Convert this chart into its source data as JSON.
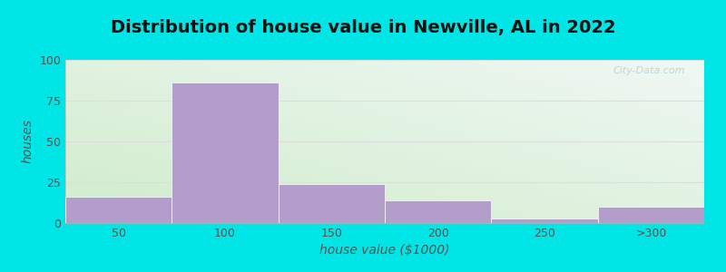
{
  "title": "Distribution of house value in Newville, AL in 2022",
  "xlabel": "house value ($1000)",
  "ylabel": "houses",
  "bar_values": [
    16,
    86,
    24,
    14,
    3,
    10
  ],
  "bar_labels": [
    "50",
    "100",
    "150",
    "200",
    "250",
    ">300"
  ],
  "bar_color": "#b39dca",
  "bar_edgecolor": "#ffffff",
  "ylim": [
    0,
    100
  ],
  "yticks": [
    0,
    25,
    50,
    75,
    100
  ],
  "background_outer": "#00e5e5",
  "grad_topleft": "#d8edce",
  "grad_topright": "#e8f4f0",
  "grad_bottomleft": "#edf6e8",
  "grad_bottomright": "#f4f8f6",
  "grid_color": "#dddddd",
  "title_fontsize": 14,
  "axis_label_fontsize": 10,
  "tick_fontsize": 9,
  "tick_color": "#555555",
  "label_color": "#555555",
  "watermark": "City-Data.com"
}
